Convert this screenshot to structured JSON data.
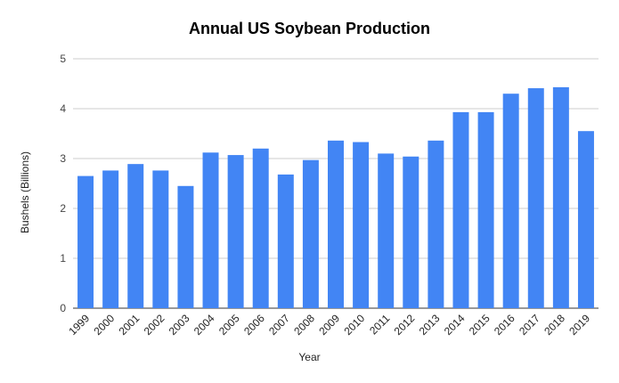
{
  "chart_data": {
    "type": "bar",
    "title": "Annual US Soybean Production",
    "xlabel": "Year",
    "ylabel": "Bushels (Billions)",
    "ylim": [
      0,
      5
    ],
    "yticks": [
      "0",
      "1",
      "2",
      "3",
      "4",
      "5"
    ],
    "grid": true,
    "legend": "none",
    "bar_color": "#4285f4",
    "categories": [
      "1999",
      "2000",
      "2001",
      "2002",
      "2003",
      "2004",
      "2005",
      "2006",
      "2007",
      "2008",
      "2009",
      "2010",
      "2011",
      "2012",
      "2013",
      "2014",
      "2015",
      "2016",
      "2017",
      "2018",
      "2019"
    ],
    "values": [
      2.65,
      2.76,
      2.89,
      2.76,
      2.45,
      3.12,
      3.07,
      3.2,
      2.68,
      2.97,
      3.36,
      3.33,
      3.1,
      3.04,
      3.36,
      3.93,
      3.93,
      4.3,
      4.41,
      4.43,
      3.55
    ]
  }
}
